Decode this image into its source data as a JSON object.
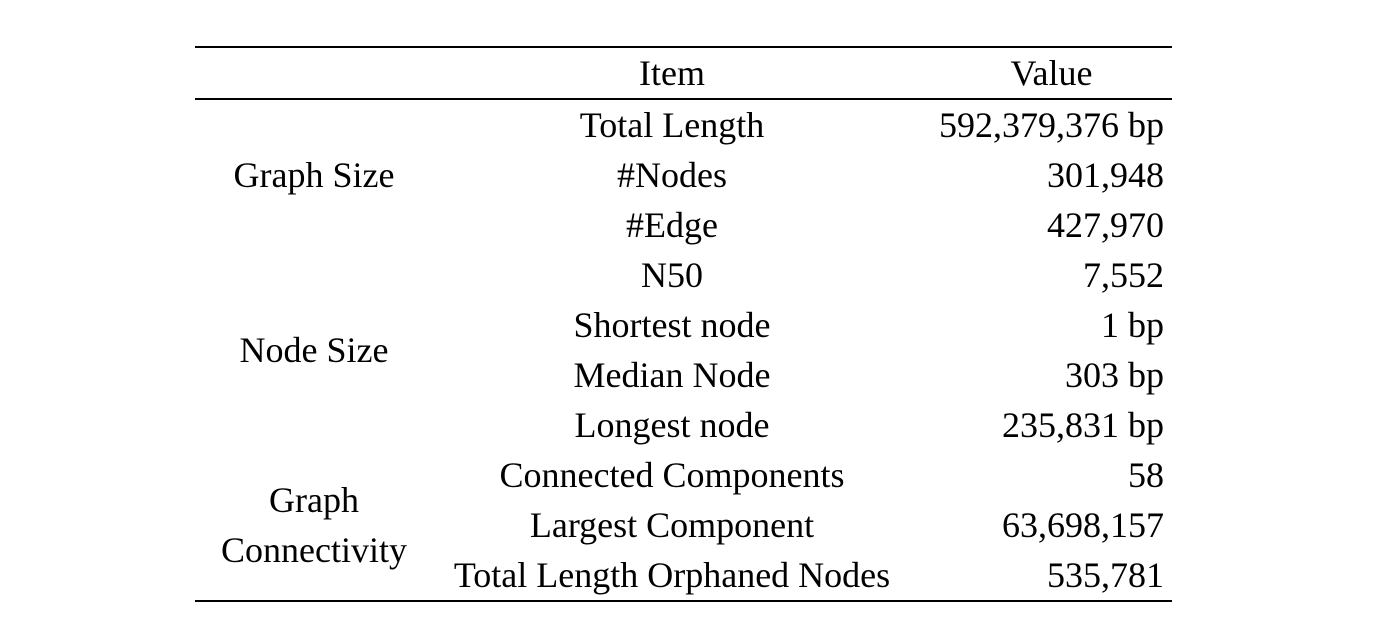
{
  "table": {
    "headers": {
      "category": "",
      "item": "Item",
      "value": "Value"
    },
    "groups": [
      {
        "category": "Graph Size",
        "rows": [
          {
            "item": "Total Length",
            "value": "592,379,376 bp"
          },
          {
            "item": "#Nodes",
            "value": "301,948"
          },
          {
            "item": "#Edge",
            "value": "427,970"
          }
        ]
      },
      {
        "category": "Node Size",
        "rows": [
          {
            "item": "N50",
            "value": "7,552"
          },
          {
            "item": "Shortest node",
            "value": "1 bp"
          },
          {
            "item": "Median Node",
            "value": "303 bp"
          },
          {
            "item": "Longest node",
            "value": "235,831 bp"
          }
        ]
      },
      {
        "category": "Graph Connectivity",
        "rows": [
          {
            "item": "Connected Components",
            "value": "58"
          },
          {
            "item": "Largest Component",
            "value": "63,698,157"
          },
          {
            "item": "Total Length Orphaned Nodes",
            "value": "535,781"
          }
        ]
      }
    ]
  }
}
